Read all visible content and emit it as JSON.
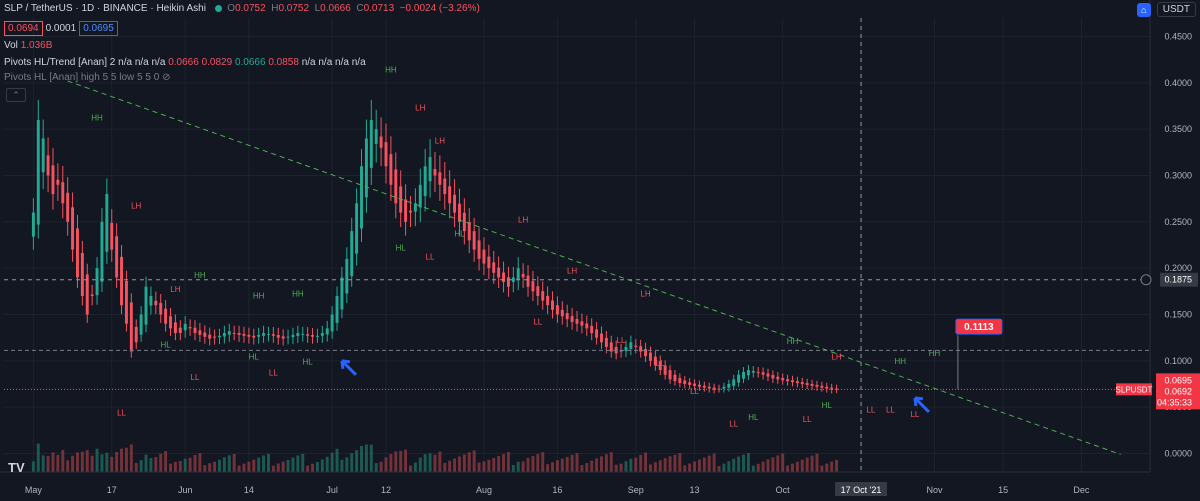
{
  "header": {
    "symbol": "SLP / TetherUS · 1D · BINANCE · Heikin Ashi",
    "o_label": "O",
    "o": "0.0752",
    "h_label": "H",
    "h": "0.0752",
    "l_label": "L",
    "l": "0.0666",
    "c_label": "C",
    "c": "0.0713",
    "change": "−0.0024 (−3.26%)",
    "bid": "0.0694",
    "spread": "0.0001",
    "ask": "0.0695",
    "vol_label": "Vol",
    "vol_value": "1.036B",
    "pivots_label": "Pivots HL/Trend [Anan] 2",
    "pivots_na1": "n/a n/a n/a",
    "pivots_v1": "0.0666",
    "pivots_v2": "0.0829",
    "pivots_v3": "0.0666",
    "pivots_v4": "0.0858",
    "pivots_na2": "n/a n/a n/a n/a",
    "pivots2_label": "Pivots HL [Anan] high 5 5 low 5 5 0",
    "currency": "USDT",
    "collapse_glyph": "⌃",
    "logo": "TV"
  },
  "chart_data": {
    "type": "candlestick",
    "title": "SLP / TetherUS · 1D · BINANCE · Heikin Ashi",
    "y_axis": {
      "ticks": [
        "0.4500",
        "0.4000",
        "0.3500",
        "0.3000",
        "0.2500",
        "0.2000",
        "0.1500",
        "0.1000",
        "0.0500",
        "0.0000"
      ],
      "tick_values": [
        0.45,
        0.4,
        0.35,
        0.3,
        0.25,
        0.2,
        0.15,
        0.1,
        0.05,
        0.0
      ],
      "range": [
        -0.02,
        0.47
      ]
    },
    "x_axis": {
      "labels": [
        "May",
        "17",
        "Jun",
        "14",
        "Jul",
        "12",
        "Aug",
        "16",
        "Sep",
        "13",
        "Oct",
        "17 Oct '21",
        "Nov",
        "15",
        "Dec"
      ],
      "label_days": [
        0,
        16,
        31,
        44,
        61,
        72,
        92,
        107,
        123,
        135,
        153,
        169,
        184,
        198,
        214
      ],
      "range_days": [
        -6,
        228
      ]
    },
    "price_labels": {
      "crosshair_price": "0.1875",
      "crosshair_value": 0.1875,
      "crosshair_date": "17 Oct '21",
      "crosshair_day": 169,
      "measure_label": "0.1113",
      "measure_value": 0.1113,
      "last_price_name": "SLPUSDT",
      "last_price_values": [
        "0.0695",
        "0.0692",
        "04:35:33"
      ],
      "last_price": 0.0692
    },
    "h_line": 0.1113,
    "trendline": {
      "from": [
        7,
        0.402
      ],
      "to": [
        222,
        -0.001
      ]
    },
    "heikin_close_series": [
      0.26,
      0.36,
      0.34,
      0.3,
      0.28,
      0.29,
      0.27,
      0.25,
      0.22,
      0.19,
      0.17,
      0.15,
      0.17,
      0.2,
      0.25,
      0.28,
      0.22,
      0.19,
      0.16,
      0.14,
      0.11,
      0.12,
      0.15,
      0.18,
      0.17,
      0.16,
      0.15,
      0.14,
      0.135,
      0.13,
      0.13,
      0.14,
      0.135,
      0.13,
      0.128,
      0.126,
      0.124,
      0.125,
      0.127,
      0.13,
      0.132,
      0.13,
      0.128,
      0.127,
      0.126,
      0.125,
      0.128,
      0.13,
      0.129,
      0.127,
      0.125,
      0.124,
      0.126,
      0.128,
      0.13,
      0.129,
      0.127,
      0.126,
      0.127,
      0.13,
      0.135,
      0.15,
      0.17,
      0.19,
      0.21,
      0.24,
      0.27,
      0.31,
      0.34,
      0.36,
      0.35,
      0.33,
      0.31,
      0.29,
      0.27,
      0.26,
      0.25,
      0.26,
      0.27,
      0.29,
      0.31,
      0.32,
      0.3,
      0.29,
      0.28,
      0.27,
      0.26,
      0.25,
      0.24,
      0.23,
      0.22,
      0.21,
      0.205,
      0.2,
      0.195,
      0.19,
      0.185,
      0.18,
      0.19,
      0.2,
      0.19,
      0.18,
      0.175,
      0.17,
      0.165,
      0.16,
      0.155,
      0.15,
      0.148,
      0.145,
      0.142,
      0.14,
      0.138,
      0.135,
      0.13,
      0.125,
      0.12,
      0.115,
      0.11,
      0.108,
      0.11,
      0.115,
      0.12,
      0.115,
      0.11,
      0.105,
      0.1,
      0.095,
      0.09,
      0.085,
      0.08,
      0.078,
      0.076,
      0.075,
      0.074,
      0.073,
      0.072,
      0.071,
      0.07,
      0.069,
      0.07,
      0.072,
      0.075,
      0.08,
      0.085,
      0.088,
      0.09,
      0.089,
      0.087,
      0.085,
      0.083,
      0.081,
      0.08,
      0.079,
      0.078,
      0.077,
      0.076,
      0.075,
      0.074,
      0.073,
      0.072,
      0.071,
      0.07,
      0.069,
      0.0692
    ],
    "pivot_labels": [
      {
        "text": "HH",
        "day": 13,
        "value": 0.355
      },
      {
        "text": "LH",
        "day": 21,
        "value": 0.26
      },
      {
        "text": "LL",
        "day": 18,
        "value": 0.052
      },
      {
        "text": "HL",
        "day": 27,
        "value": 0.125
      },
      {
        "text": "LH",
        "day": 29,
        "value": 0.17
      },
      {
        "text": "HH",
        "day": 34,
        "value": 0.185
      },
      {
        "text": "LL",
        "day": 33,
        "value": 0.09
      },
      {
        "text": "HL",
        "day": 45,
        "value": 0.112
      },
      {
        "text": "HH",
        "day": 46,
        "value": 0.163
      },
      {
        "text": "HH",
        "day": 54,
        "value": 0.165
      },
      {
        "text": "LL",
        "day": 49,
        "value": 0.095
      },
      {
        "text": "HL",
        "day": 56,
        "value": 0.107
      },
      {
        "text": "HH",
        "day": 73,
        "value": 0.407
      },
      {
        "text": "LH",
        "day": 79,
        "value": 0.366
      },
      {
        "text": "LH",
        "day": 83,
        "value": 0.33
      },
      {
        "text": "HL",
        "day": 75,
        "value": 0.23
      },
      {
        "text": "LL",
        "day": 81,
        "value": 0.22
      },
      {
        "text": "HL",
        "day": 87,
        "value": 0.245
      },
      {
        "text": "LH",
        "day": 100,
        "value": 0.245
      },
      {
        "text": "LH",
        "day": 110,
        "value": 0.19
      },
      {
        "text": "LL",
        "day": 103,
        "value": 0.15
      },
      {
        "text": "LH",
        "day": 125,
        "value": 0.165
      },
      {
        "text": "LL",
        "day": 120,
        "value": 0.13
      },
      {
        "text": "LL",
        "day": 128,
        "value": 0.105
      },
      {
        "text": "LL",
        "day": 135,
        "value": 0.075
      },
      {
        "text": "LL",
        "day": 143,
        "value": 0.04
      },
      {
        "text": "HL",
        "day": 147,
        "value": 0.047
      },
      {
        "text": "HH",
        "day": 155,
        "value": 0.114
      },
      {
        "text": "LL",
        "day": 158,
        "value": 0.045
      },
      {
        "text": "HL",
        "day": 162,
        "value": 0.06
      },
      {
        "text": "LH",
        "day": 164,
        "value": 0.097
      },
      {
        "text": "LL",
        "day": 171,
        "value": 0.055
      },
      {
        "text": "HH",
        "day": 177,
        "value": 0.092
      },
      {
        "text": "LL",
        "day": 175,
        "value": 0.055
      },
      {
        "text": "HH",
        "day": 184,
        "value": 0.101
      },
      {
        "text": "LL",
        "day": 180,
        "value": 0.05
      }
    ]
  }
}
